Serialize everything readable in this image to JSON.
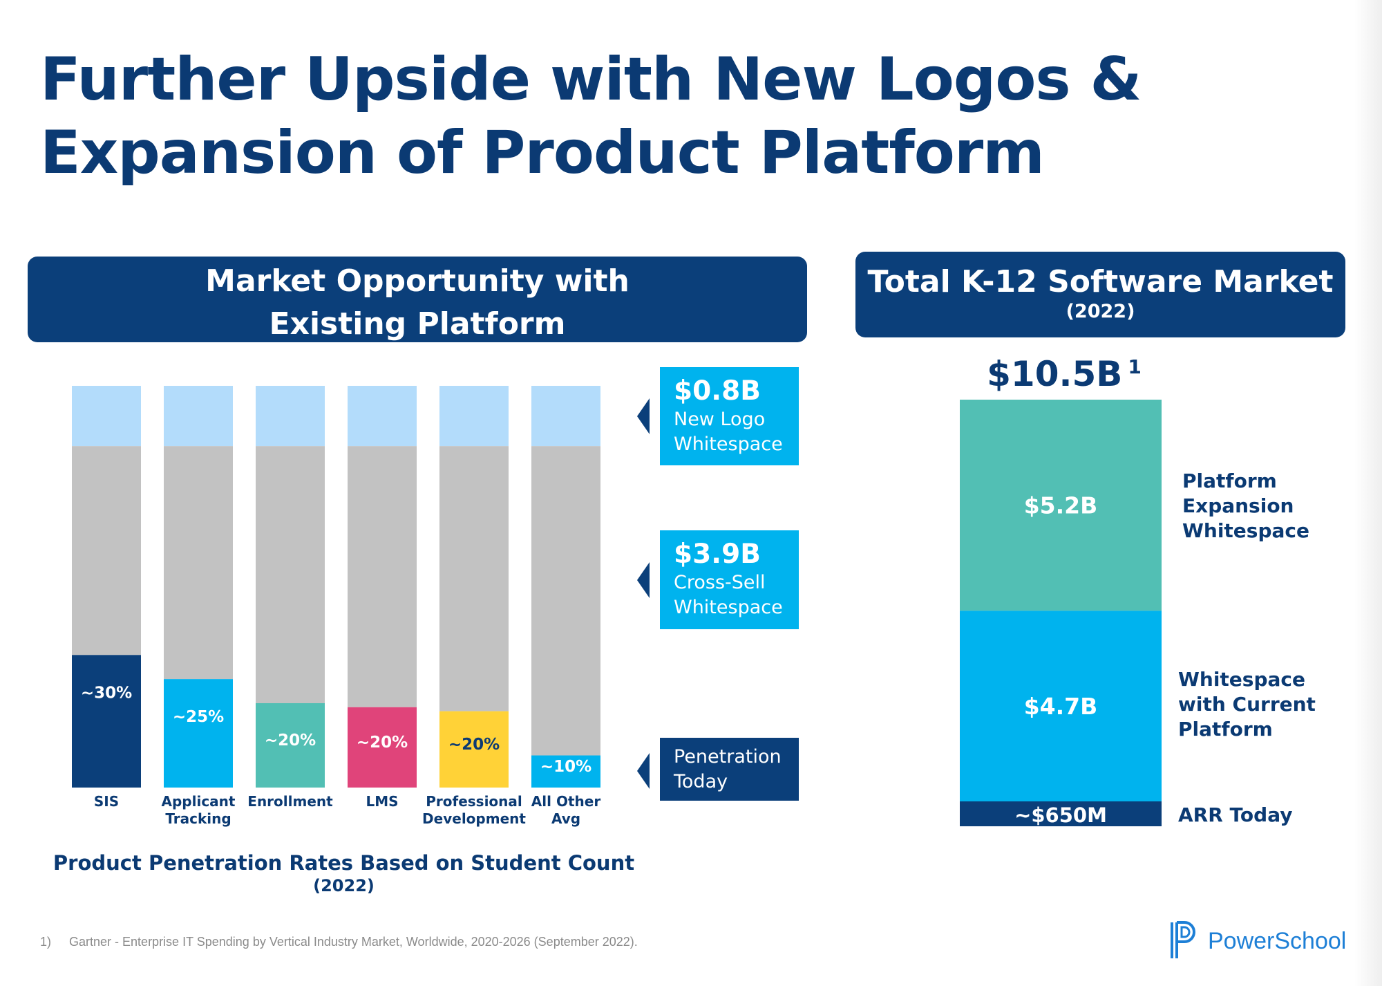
{
  "page": {
    "title": "Further Upside with New Logos & Expansion of Product Platform",
    "footnote_number": "1)",
    "footnote": "Gartner - Enterprise IT Spending by Vertical Industry Market, Worldwide, 2020-2026 (September 2022).",
    "logo_text": "PowerSchool"
  },
  "left_panel": {
    "header_line1": "Market Opportunity with",
    "header_line2": "Existing Platform"
  },
  "right_panel": {
    "header_line1": "Total K-12 Software Market",
    "header_line2": "(2022)"
  },
  "legend": {
    "new_logo": {
      "value": "$0.8B",
      "label_line1": "New Logo",
      "label_line2": "Whitespace"
    },
    "cross_sell": {
      "value": "$3.9B",
      "label_line1": "Cross-Sell",
      "label_line2": "Whitespace"
    },
    "penetration": {
      "label_line1": "Penetration",
      "label_line2": "Today"
    }
  },
  "colors": {
    "navy": "#0b3f7a",
    "light_blue": "#b3dcfb",
    "gray": "#c2c2c2",
    "sky": "#00b3ee",
    "teal": "#52bfb4",
    "pink": "#e0447a",
    "yellow": "#ffd237"
  },
  "chart_data": [
    {
      "type": "bar",
      "stacked": true,
      "title": "Product Penetration Rates Based on Student Count",
      "subtitle": "(2022)",
      "categories": [
        {
          "line1": "SIS",
          "line2": ""
        },
        {
          "line1": "Applicant",
          "line2": "Tracking"
        },
        {
          "line1": "Enrollment",
          "line2": ""
        },
        {
          "line1": "LMS",
          "line2": ""
        },
        {
          "line1": "Professional",
          "line2": "Development"
        },
        {
          "line1": "All Other",
          "line2": "Avg"
        }
      ],
      "penetration": [
        30,
        25,
        20,
        20,
        20,
        10
      ],
      "penetration_labels": [
        "~30%",
        "~25%",
        "~20%",
        "~20%",
        "~20%",
        "~10%"
      ],
      "penetration_colors": [
        "#0b3f7a",
        "#00b3ee",
        "#52bfb4",
        "#e0447a",
        "#ffd237",
        "#00b3ee"
      ],
      "penetration_label_colors": [
        "#ffffff",
        "#ffffff",
        "#ffffff",
        "#ffffff",
        "#0b3a73",
        "#ffffff"
      ],
      "shown_penetration": [
        33,
        27,
        21,
        20,
        19,
        8
      ],
      "new_logo_share": 15,
      "ylim": [
        0,
        100
      ]
    },
    {
      "type": "bar",
      "stacked": true,
      "title": "$10.5B",
      "title_footnote": "1",
      "unit": "$B",
      "segments": [
        {
          "name": "ARR Today",
          "value": 0.65,
          "label": "~$650M",
          "color": "#0b3f7a"
        },
        {
          "name": "Whitespace with Current Platform",
          "value": 4.7,
          "label": "$4.7B",
          "color": "#00b3ee"
        },
        {
          "name": "Platform Expansion Whitespace",
          "value": 5.2,
          "label": "$5.2B",
          "color": "#52bfb4"
        }
      ],
      "side_labels": {
        "arr": "ARR Today",
        "current_line1": "Whitespace",
        "current_line2": "with Current",
        "current_line3": "Platform",
        "expansion_line1": "Platform",
        "expansion_line2": "Expansion",
        "expansion_line3": "Whitespace"
      }
    }
  ]
}
